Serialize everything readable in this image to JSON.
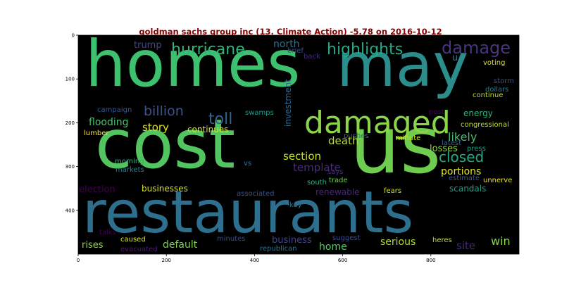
{
  "chart_data": {
    "type": "wordcloud",
    "title": "goldman sachs group inc (13. Climate Action) -5.78 on 2016-10-12",
    "background": "#000000",
    "title_color": "#8b0000",
    "xlim": [
      0,
      1000
    ],
    "ylim": [
      500,
      0
    ],
    "x_ticks": [
      0,
      200,
      400,
      600,
      800
    ],
    "y_ticks": [
      0,
      100,
      200,
      300,
      400
    ],
    "words": [
      {
        "text": "homes",
        "color": "#3ec16f"
      },
      {
        "text": "may",
        "color": "#2b8e8c"
      },
      {
        "text": "cost",
        "color": "#52c460"
      },
      {
        "text": "us",
        "color": "#6ecc4f"
      },
      {
        "text": "restaurants",
        "color": "#2e6f8e"
      },
      {
        "text": "damaged",
        "color": "#8ad547"
      },
      {
        "text": "damage",
        "color": "#46367c"
      },
      {
        "text": "highlights",
        "color": "#26a984"
      },
      {
        "text": "hurricane",
        "color": "#31b57b"
      },
      {
        "text": "billion",
        "color": "#3b528b"
      },
      {
        "text": "toll",
        "color": "#33638d"
      },
      {
        "text": "story",
        "color": "#dbe21d"
      },
      {
        "text": "flooding",
        "color": "#4cc26c"
      },
      {
        "text": "closed",
        "color": "#25ab82"
      },
      {
        "text": "likely",
        "color": "#44bf70"
      },
      {
        "text": "death",
        "color": "#b5de2b"
      },
      {
        "text": "section",
        "color": "#c7e020"
      },
      {
        "text": "template",
        "color": "#4a2d7a"
      },
      {
        "text": "portions",
        "color": "#e0e31d"
      },
      {
        "text": "businesses",
        "color": "#d2e21b"
      },
      {
        "text": "business",
        "color": "#404688"
      },
      {
        "text": "default",
        "color": "#7ad151"
      },
      {
        "text": "serious",
        "color": "#b0dd2f"
      },
      {
        "text": "rises",
        "color": "#8fd744"
      },
      {
        "text": "win",
        "color": "#86d549"
      },
      {
        "text": "home",
        "color": "#58c765"
      },
      {
        "text": "site",
        "color": "#482677"
      },
      {
        "text": "losses",
        "color": "#8fd744"
      },
      {
        "text": "energy",
        "color": "#2fb47c"
      },
      {
        "text": "investment",
        "color": "#31688e"
      },
      {
        "text": "north",
        "color": "#2d718e"
      },
      {
        "text": "trump",
        "color": "#3f4889"
      },
      {
        "text": "u",
        "color": "#2c728e"
      },
      {
        "text": "voting",
        "color": "#d8e219"
      },
      {
        "text": "storm",
        "color": "#3b528b"
      },
      {
        "text": "dollars",
        "color": "#2a788e"
      },
      {
        "text": "continue",
        "color": "#b5de2b"
      },
      {
        "text": "congressional",
        "color": "#c0df25"
      },
      {
        "text": "continues",
        "color": "#dde318"
      },
      {
        "text": "election",
        "color": "#440154"
      },
      {
        "text": "renewable",
        "color": "#482475"
      },
      {
        "text": "scandals",
        "color": "#1f9e89"
      },
      {
        "text": "campaign",
        "color": "#39568c"
      },
      {
        "text": "swamps",
        "color": "#1f9a8a"
      },
      {
        "text": "minute",
        "color": "#d0e11c"
      },
      {
        "text": "pushes",
        "color": "#2f6c8e"
      },
      {
        "text": "post",
        "color": "#440154"
      },
      {
        "text": "latest",
        "color": "#33628d"
      },
      {
        "text": "press",
        "color": "#20a386"
      },
      {
        "text": "lumber",
        "color": "#fde725"
      },
      {
        "text": "morning",
        "color": "#29af7f"
      },
      {
        "text": "markets",
        "color": "#26828e"
      },
      {
        "text": "vs",
        "color": "#2a788e"
      },
      {
        "text": "says",
        "color": "#472d7b"
      },
      {
        "text": "trade",
        "color": "#6ccd5a"
      },
      {
        "text": "south",
        "color": "#2db27d"
      },
      {
        "text": "fears",
        "color": "#d2e21b"
      },
      {
        "text": "estimate",
        "color": "#3a548c"
      },
      {
        "text": "unnerve",
        "color": "#e7e419"
      },
      {
        "text": "associated",
        "color": "#3b518b"
      },
      {
        "text": "key",
        "color": "#2c738e"
      },
      {
        "text": "talks",
        "color": "#440154"
      },
      {
        "text": "caused",
        "color": "#e2e418"
      },
      {
        "text": "minutes",
        "color": "#3e4a89"
      },
      {
        "text": "suggest",
        "color": "#3e4c8a"
      },
      {
        "text": "heres",
        "color": "#c2df23"
      },
      {
        "text": "evacuated",
        "color": "#481a6c"
      },
      {
        "text": "republican",
        "color": "#2a768e"
      },
      {
        "text": "brief",
        "color": "#3b518b"
      },
      {
        "text": "back",
        "color": "#472a7a"
      }
    ]
  }
}
